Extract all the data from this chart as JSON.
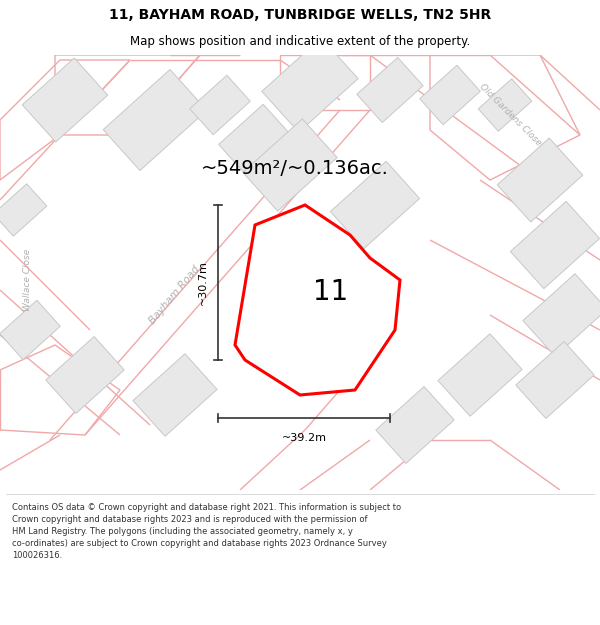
{
  "title": "11, BAYHAM ROAD, TUNBRIDGE WELLS, TN2 5HR",
  "subtitle": "Map shows position and indicative extent of the property.",
  "area_text": "~549m²/~0.136ac.",
  "label_11": "11",
  "dim_width": "~39.2m",
  "dim_height": "~30.7m",
  "copyright_text": "Contains OS data © Crown copyright and database right 2021. This information is subject to Crown copyright and database rights 2023 and is reproduced with the permission of HM Land Registry. The polygons (including the associated geometry, namely x, y co-ordinates) are subject to Crown copyright and database rights 2023 Ordnance Survey 100026316.",
  "road_label_bayham": "Bayham Road",
  "road_label_wallace": "Wallace Close",
  "road_label_old_gardens": "Old Gardens Close",
  "map_bg": "#ffffff",
  "building_face": "#e8e8e8",
  "building_edge": "#c8c8c8",
  "road_outline_color": "#f0a8a8",
  "road_fill_color": "#ffffff",
  "plot_color": "#ff0000",
  "plot_lw": 2.2,
  "header_bg": "#ffffff",
  "footer_bg": "#ffffff",
  "title_fontsize": 10,
  "subtitle_fontsize": 8.5,
  "area_fontsize": 14,
  "label_fontsize": 20,
  "road_label_color": "#b0b0b0",
  "dim_line_color": "#333333",
  "footer_text_color": "#333333",
  "footer_fontsize": 6.0
}
